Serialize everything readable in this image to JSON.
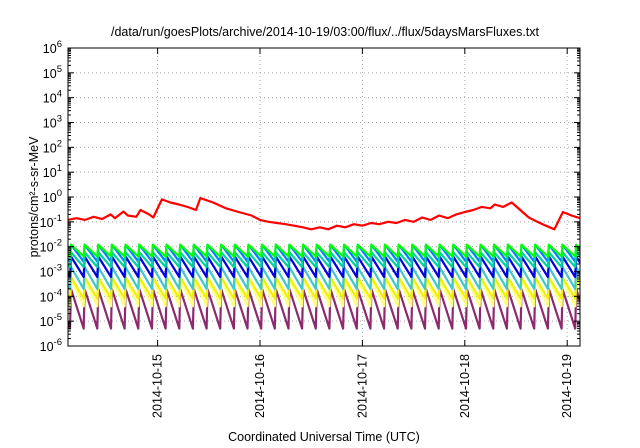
{
  "chart_data": {
    "type": "line",
    "title": "/data/run/goesPlots/archive/2014-10-19/03:00/flux/../flux/5daysMarsFluxes.txt",
    "xlabel": "Coordinated Universal Time (UTC)",
    "ylabel": "protons/cm²-s-sr-MeV",
    "yscale": "log",
    "ylim": [
      1e-06,
      1000000.0
    ],
    "xlim": [
      "2014-10-14T03:00",
      "2014-10-19T03:00"
    ],
    "x_ticks": [
      "2014-10-15",
      "2014-10-16",
      "2014-10-17",
      "2014-10-18",
      "2014-10-19"
    ],
    "y_ticks": [
      {
        "base": "10",
        "exp": "-6"
      },
      {
        "base": "10",
        "exp": "-5"
      },
      {
        "base": "10",
        "exp": "-4"
      },
      {
        "base": "10",
        "exp": "-3"
      },
      {
        "base": "10",
        "exp": "-2"
      },
      {
        "base": "10",
        "exp": "-1"
      },
      {
        "base": "10",
        "exp": "0"
      },
      {
        "base": "10",
        "exp": "1"
      },
      {
        "base": "10",
        "exp": "2"
      },
      {
        "base": "10",
        "exp": "3"
      },
      {
        "base": "10",
        "exp": "4"
      },
      {
        "base": "10",
        "exp": "5"
      },
      {
        "base": "10",
        "exp": "6"
      }
    ],
    "grid": true,
    "series": [
      {
        "color": "#ff0000",
        "x": [
          "2014-10-14T03:00",
          "2014-10-14T05:00",
          "2014-10-14T07:00",
          "2014-10-14T09:00",
          "2014-10-14T11:00",
          "2014-10-14T13:00",
          "2014-10-14T14:00",
          "2014-10-14T16:00",
          "2014-10-14T17:00",
          "2014-10-14T19:00",
          "2014-10-14T20:00",
          "2014-10-14T22:00",
          "2014-10-14T23:00",
          "2014-10-15T01:00",
          "2014-10-15T03:00",
          "2014-10-15T05:00",
          "2014-10-15T07:00",
          "2014-10-15T09:00",
          "2014-10-15T10:00",
          "2014-10-15T13:00",
          "2014-10-15T16:00",
          "2014-10-15T19:00",
          "2014-10-15T22:00",
          "2014-10-16T00:00",
          "2014-10-16T02:00",
          "2014-10-16T04:00",
          "2014-10-16T06:00",
          "2014-10-16T08:00",
          "2014-10-16T10:00",
          "2014-10-16T12:00",
          "2014-10-16T14:00",
          "2014-10-16T16:00",
          "2014-10-16T18:00",
          "2014-10-16T20:00",
          "2014-10-16T22:00",
          "2014-10-17T00:00",
          "2014-10-17T02:00",
          "2014-10-17T04:00",
          "2014-10-17T06:00",
          "2014-10-17T08:00",
          "2014-10-17T10:00",
          "2014-10-17T12:00",
          "2014-10-17T14:00",
          "2014-10-17T16:00",
          "2014-10-17T18:00",
          "2014-10-17T20:00",
          "2014-10-17T22:00",
          "2014-10-18T00:00",
          "2014-10-18T02:00",
          "2014-10-18T04:00",
          "2014-10-18T06:00",
          "2014-10-18T07:00",
          "2014-10-18T09:00",
          "2014-10-18T11:00",
          "2014-10-18T13:00",
          "2014-10-18T15:00",
          "2014-10-18T17:00",
          "2014-10-18T19:00",
          "2014-10-18T21:00",
          "2014-10-18T23:00",
          "2014-10-19T01:00",
          "2014-10-19T03:00"
        ],
        "values": [
          0.12,
          0.14,
          0.12,
          0.16,
          0.13,
          0.2,
          0.14,
          0.26,
          0.18,
          0.16,
          0.3,
          0.2,
          0.15,
          0.8,
          0.6,
          0.5,
          0.4,
          0.3,
          0.9,
          0.6,
          0.35,
          0.25,
          0.18,
          0.12,
          0.1,
          0.09,
          0.08,
          0.07,
          0.06,
          0.05,
          0.06,
          0.05,
          0.07,
          0.06,
          0.08,
          0.07,
          0.09,
          0.08,
          0.1,
          0.09,
          0.12,
          0.1,
          0.15,
          0.12,
          0.18,
          0.14,
          0.2,
          0.25,
          0.3,
          0.4,
          0.35,
          0.5,
          0.4,
          0.6,
          0.3,
          0.15,
          0.1,
          0.07,
          0.05,
          0.25,
          0.18,
          0.14
        ]
      },
      {
        "color": "#00ff00"
      },
      {
        "color": "#00d2a0"
      },
      {
        "color": "#0080ff"
      },
      {
        "color": "#0000e0"
      },
      {
        "color": "#40c8c8"
      },
      {
        "color": "#f0f000"
      },
      {
        "color": "#ffff80"
      },
      {
        "color": "#8c2a6e"
      }
    ],
    "sawtooth": [
      {
        "peak": 0.025,
        "trough": 0.009
      },
      {
        "peak": 0.012,
        "trough": 0.004
      },
      {
        "peak": 0.006,
        "trough": 0.0015
      },
      {
        "peak": 0.012,
        "trough": 0.0025
      },
      {
        "peak": 0.004,
        "trough": 0.0006
      },
      {
        "peak": 0.0015,
        "trough": 0.0002
      },
      {
        "peak": 0.0006,
        "trough": 8e-05
      },
      {
        "peak": 0.0005,
        "trough": 4e-05
      },
      {
        "peak": 0.0002,
        "trough": 5e-06
      }
    ]
  }
}
